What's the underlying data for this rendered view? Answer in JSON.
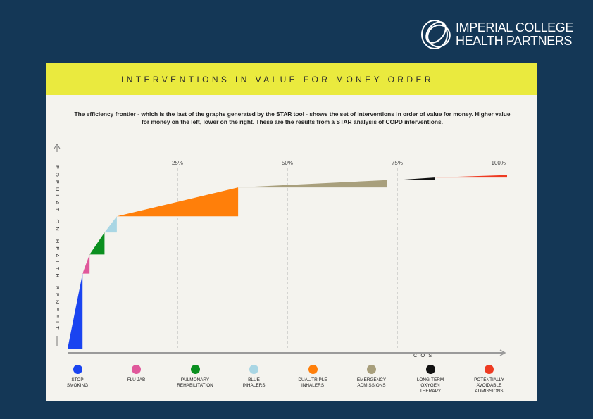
{
  "header": {
    "logo_line1": "IMPERIAL COLLEGE",
    "logo_line2": "HEALTH PARTNERS",
    "logo_mark_icon": "interlocking-rings-icon"
  },
  "slide": {
    "title": "INTERVENTIONS IN VALUE FOR MONEY ORDER",
    "description": "The efficiency frontier - which is the last of the graphs generated by the STAR tool - shows the set of interventions in order of value for money. Higher value for money on the left, lower on the right. These are the results from a STAR analysis of COPD interventions.",
    "banner_color": "#eaea3e",
    "background_color": "#143756"
  },
  "chart_data": {
    "type": "area",
    "title": "",
    "xlabel": "COST",
    "ylabel": "POPULATION HEALTH BENEFIT",
    "x_ticks": [
      "25%",
      "50%",
      "75%",
      "100%"
    ],
    "x_tick_values": [
      25,
      50,
      75,
      100
    ],
    "xlim": [
      0,
      100
    ],
    "ylim": [
      0,
      100
    ],
    "grid": "vertical dashed at tick marks",
    "legend_position": "bottom",
    "series": [
      {
        "name": "STOP SMOKING",
        "color": "#1a44f0",
        "x_start": 0.0,
        "x_end": 3.4,
        "y_start": 0.0,
        "y_end": 41.9
      },
      {
        "name": "FLU JAB",
        "color": "#e0589b",
        "x_start": 3.4,
        "x_end": 5.0,
        "y_start": 41.9,
        "y_end": 52.6
      },
      {
        "name": "PULMONARY REHABILITATION",
        "color": "#0a8f1f",
        "x_start": 5.0,
        "x_end": 8.4,
        "y_start": 52.6,
        "y_end": 64.9
      },
      {
        "name": "BLUE INHALERS",
        "color": "#a9d6e4",
        "x_start": 8.4,
        "x_end": 11.2,
        "y_start": 64.9,
        "y_end": 73.9
      },
      {
        "name": "DUAL/TRIPLE INHALERS",
        "color": "#ff7f0a",
        "x_start": 11.2,
        "x_end": 38.8,
        "y_start": 73.9,
        "y_end": 90.1
      },
      {
        "name": "EMERGENCY ADMISSIONS",
        "color": "#a89f7c",
        "x_start": 38.8,
        "x_end": 72.6,
        "y_start": 90.1,
        "y_end": 94.2
      },
      {
        "name": "LONG-TERM OXYGEN THERAPY",
        "color": "#111111",
        "x_start": 74.7,
        "x_end": 83.5,
        "y_start": 94.2,
        "y_end": 95.6
      },
      {
        "name": "POTENTIALLY AVOIDABLE ADMISSIONS",
        "color": "#ee3b22",
        "x_start": 83.5,
        "x_end": 100.0,
        "y_start": 95.6,
        "y_end": 97.0
      }
    ]
  },
  "legend": {
    "items": [
      {
        "label_lines": [
          "STOP",
          "SMOKING"
        ],
        "color": "#1a44f0",
        "icon": "blue-dot-icon"
      },
      {
        "label_lines": [
          "FLU JAB"
        ],
        "color": "#e0589b",
        "icon": "pink-dot-icon"
      },
      {
        "label_lines": [
          "PULMONARY",
          "REHABILITATION"
        ],
        "color": "#0a8f1f",
        "icon": "green-dot-icon"
      },
      {
        "label_lines": [
          "BLUE",
          "INHALERS"
        ],
        "color": "#a9d6e4",
        "icon": "light-blue-dot-icon"
      },
      {
        "label_lines": [
          "DUAL/TRIPLE",
          "INHALERS"
        ],
        "color": "#ff7f0a",
        "icon": "orange-dot-icon"
      },
      {
        "label_lines": [
          "EMERGENCY",
          "ADMISSIONS"
        ],
        "color": "#a89f7c",
        "icon": "khaki-dot-icon"
      },
      {
        "label_lines": [
          "LONG-TERM",
          "OXYGEN",
          "THERAPY"
        ],
        "color": "#111111",
        "icon": "black-dot-icon"
      },
      {
        "label_lines": [
          "POTENTIALLY",
          "AVOIDABLE",
          "ADMISSIONS"
        ],
        "color": "#ee3b22",
        "icon": "red-dot-icon"
      }
    ]
  }
}
